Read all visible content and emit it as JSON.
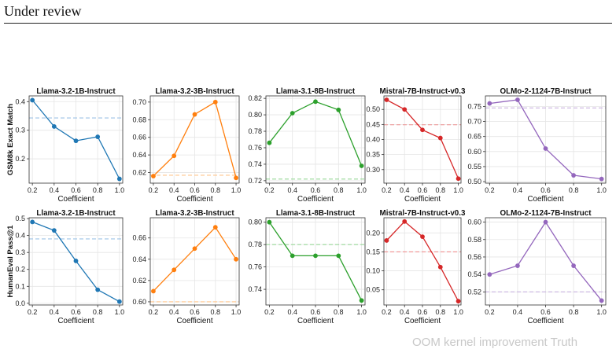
{
  "header": {
    "title": "Under review"
  },
  "footer": {
    "text": "OOM kernel improvement Truth"
  },
  "style": {
    "grid_color": "#e5e5e5",
    "axis_color": "#333333"
  },
  "chart_data": [
    {
      "type": "line",
      "title": "Llama-3.2-1B-Instruct",
      "row": 0,
      "col": 0,
      "xlabel": "Coefficient",
      "ylabel": "GSM8k Exact Match",
      "color": "#1f77b4",
      "baseline_color": "#9dc3e6",
      "x": [
        0.2,
        0.4,
        0.6,
        0.8,
        1.0
      ],
      "values": [
        0.405,
        0.313,
        0.263,
        0.277,
        0.13
      ],
      "baseline": 0.343,
      "ylim": [
        0.115,
        0.42
      ],
      "yticks": [
        0.2,
        0.3,
        0.4
      ],
      "ytick_labels": [
        "0.2",
        "0.3",
        "0.4"
      ],
      "xticks": [
        0.2,
        0.4,
        0.6,
        0.8,
        1.0
      ],
      "xtick_labels": [
        "0.2",
        "0.4",
        "0.6",
        "0.8",
        "1.0"
      ],
      "grid": true
    },
    {
      "type": "line",
      "title": "Llama-3.2-3B-Instruct",
      "row": 0,
      "col": 1,
      "xlabel": "Coefficient",
      "ylabel": "",
      "color": "#ff7f0e",
      "baseline_color": "#ffc48a",
      "x": [
        0.2,
        0.4,
        0.6,
        0.8,
        1.0
      ],
      "values": [
        0.616,
        0.639,
        0.686,
        0.7,
        0.614
      ],
      "baseline": 0.617,
      "ylim": [
        0.608,
        0.707
      ],
      "yticks": [
        0.62,
        0.64,
        0.66,
        0.68,
        0.7
      ],
      "ytick_labels": [
        "0.62",
        "0.64",
        "0.66",
        "0.68",
        "0.70"
      ],
      "xticks": [
        0.2,
        0.4,
        0.6,
        0.8,
        1.0
      ],
      "xtick_labels": [
        "0.2",
        "0.4",
        "0.6",
        "0.8",
        "1.0"
      ],
      "grid": true
    },
    {
      "type": "line",
      "title": "Llama-3.1-8B-Instruct",
      "row": 0,
      "col": 2,
      "xlabel": "Coefficient",
      "ylabel": "",
      "color": "#2ca02c",
      "baseline_color": "#98d898",
      "x": [
        0.2,
        0.4,
        0.6,
        0.8,
        1.0
      ],
      "values": [
        0.766,
        0.802,
        0.816,
        0.806,
        0.738
      ],
      "baseline": 0.722,
      "ylim": [
        0.717,
        0.823
      ],
      "yticks": [
        0.72,
        0.74,
        0.76,
        0.78,
        0.8,
        0.82
      ],
      "ytick_labels": [
        "0.72",
        "0.74",
        "0.76",
        "0.78",
        "0.80",
        "0.82"
      ],
      "xticks": [
        0.2,
        0.4,
        0.6,
        0.8,
        1.0
      ],
      "xtick_labels": [
        "0.2",
        "0.4",
        "0.6",
        "0.8",
        "1.0"
      ],
      "grid": true
    },
    {
      "type": "line",
      "title": "Mistral-7B-Instruct-v0.3",
      "row": 0,
      "col": 3,
      "xlabel": "Coefficient",
      "ylabel": "",
      "color": "#d62728",
      "baseline_color": "#f09090",
      "x": [
        0.2,
        0.4,
        0.6,
        0.8,
        1.0
      ],
      "values": [
        0.532,
        0.5,
        0.432,
        0.405,
        0.27
      ],
      "baseline": 0.449,
      "ylim": [
        0.255,
        0.545
      ],
      "yticks": [
        0.3,
        0.35,
        0.4,
        0.45,
        0.5
      ],
      "ytick_labels": [
        "0.30",
        "0.35",
        "0.40",
        "0.45",
        "0.50"
      ],
      "xticks": [
        0.2,
        0.4,
        0.6,
        0.8,
        1.0
      ],
      "xtick_labels": [
        "0.2",
        "0.4",
        "0.6",
        "0.8",
        "1.0"
      ],
      "grid": true
    },
    {
      "type": "line",
      "title": "OLMo-2-1124-7B-Instruct",
      "row": 0,
      "col": 4,
      "xlabel": "Coefficient",
      "ylabel": "",
      "color": "#9467bd",
      "baseline_color": "#c9b3e0",
      "x": [
        0.2,
        0.4,
        0.6,
        0.8,
        1.0
      ],
      "values": [
        0.76,
        0.772,
        0.61,
        0.521,
        0.509
      ],
      "baseline": 0.745,
      "ylim": [
        0.495,
        0.785
      ],
      "yticks": [
        0.5,
        0.55,
        0.6,
        0.65,
        0.7,
        0.75
      ],
      "ytick_labels": [
        "0.50",
        "0.55",
        "0.60",
        "0.65",
        "0.70",
        "0.75"
      ],
      "xticks": [
        0.2,
        0.4,
        0.6,
        0.8,
        1.0
      ],
      "xtick_labels": [
        "0.2",
        "0.4",
        "0.6",
        "0.8",
        "1.0"
      ],
      "grid": true
    },
    {
      "type": "line",
      "title": "Llama-3.2-1B-Instruct",
      "row": 1,
      "col": 0,
      "xlabel": "Coefficient",
      "ylabel": "HumanEval Pass@1",
      "color": "#1f77b4",
      "baseline_color": "#9dc3e6",
      "x": [
        0.2,
        0.4,
        0.6,
        0.8,
        1.0
      ],
      "values": [
        0.48,
        0.43,
        0.25,
        0.08,
        0.01
      ],
      "baseline": 0.38,
      "ylim": [
        -0.01,
        0.505
      ],
      "yticks": [
        0.0,
        0.1,
        0.2,
        0.3,
        0.4,
        0.5
      ],
      "ytick_labels": [
        "0.0",
        "0.1",
        "0.2",
        "0.3",
        "0.4",
        "0.5"
      ],
      "xticks": [
        0.2,
        0.4,
        0.6,
        0.8,
        1.0
      ],
      "xtick_labels": [
        "0.2",
        "0.4",
        "0.6",
        "0.8",
        "1.0"
      ],
      "grid": true
    },
    {
      "type": "line",
      "title": "Llama-3.2-3B-Instruct",
      "row": 1,
      "col": 1,
      "xlabel": "Coefficient",
      "ylabel": "",
      "color": "#ff7f0e",
      "baseline_color": "#ffc48a",
      "x": [
        0.2,
        0.4,
        0.6,
        0.8,
        1.0
      ],
      "values": [
        0.61,
        0.63,
        0.65,
        0.67,
        0.64
      ],
      "baseline": 0.6,
      "ylim": [
        0.597,
        0.679
      ],
      "yticks": [
        0.6,
        0.62,
        0.64,
        0.66
      ],
      "ytick_labels": [
        "0.60",
        "0.62",
        "0.64",
        "0.66"
      ],
      "xticks": [
        0.2,
        0.4,
        0.6,
        0.8,
        1.0
      ],
      "xtick_labels": [
        "0.2",
        "0.4",
        "0.6",
        "0.8",
        "1.0"
      ],
      "grid": true
    },
    {
      "type": "line",
      "title": "Llama-3.1-8B-Instruct",
      "row": 1,
      "col": 2,
      "xlabel": "Coefficient",
      "ylabel": "",
      "color": "#2ca02c",
      "baseline_color": "#98d898",
      "x": [
        0.2,
        0.4,
        0.6,
        0.8,
        1.0
      ],
      "values": [
        0.8,
        0.77,
        0.77,
        0.77,
        0.73
      ],
      "baseline": 0.78,
      "ylim": [
        0.726,
        0.804
      ],
      "yticks": [
        0.74,
        0.76,
        0.78,
        0.8
      ],
      "ytick_labels": [
        "0.74",
        "0.76",
        "0.78",
        "0.80"
      ],
      "xticks": [
        0.2,
        0.4,
        0.6,
        0.8,
        1.0
      ],
      "xtick_labels": [
        "0.2",
        "0.4",
        "0.6",
        "0.8",
        "1.0"
      ],
      "grid": true
    },
    {
      "type": "line",
      "title": "Mistral-7B-Instruct-v0.3",
      "row": 1,
      "col": 3,
      "xlabel": "Coefficient",
      "ylabel": "",
      "color": "#d62728",
      "baseline_color": "#f09090",
      "x": [
        0.2,
        0.4,
        0.6,
        0.8,
        1.0
      ],
      "values": [
        0.18,
        0.23,
        0.19,
        0.11,
        0.02
      ],
      "baseline": 0.15,
      "ylim": [
        0.01,
        0.24
      ],
      "yticks": [
        0.05,
        0.1,
        0.15,
        0.2
      ],
      "ytick_labels": [
        "0.05",
        "0.10",
        "0.15",
        "0.20"
      ],
      "xticks": [
        0.2,
        0.4,
        0.6,
        0.8,
        1.0
      ],
      "xtick_labels": [
        "0.2",
        "0.4",
        "0.6",
        "0.8",
        "1.0"
      ],
      "grid": true
    },
    {
      "type": "line",
      "title": "OLMo-2-1124-7B-Instruct",
      "row": 1,
      "col": 4,
      "xlabel": "Coefficient",
      "ylabel": "",
      "color": "#9467bd",
      "baseline_color": "#c9b3e0",
      "x": [
        0.2,
        0.4,
        0.6,
        0.8,
        1.0
      ],
      "values": [
        0.54,
        0.55,
        0.6,
        0.55,
        0.51
      ],
      "baseline": 0.52,
      "ylim": [
        0.505,
        0.605
      ],
      "yticks": [
        0.52,
        0.54,
        0.56,
        0.58,
        0.6
      ],
      "ytick_labels": [
        "0.52",
        "0.54",
        "0.56",
        "0.58",
        "0.60"
      ],
      "xticks": [
        0.2,
        0.4,
        0.6,
        0.8,
        1.0
      ],
      "xtick_labels": [
        "0.2",
        "0.4",
        "0.6",
        "0.8",
        "1.0"
      ],
      "grid": true
    }
  ]
}
